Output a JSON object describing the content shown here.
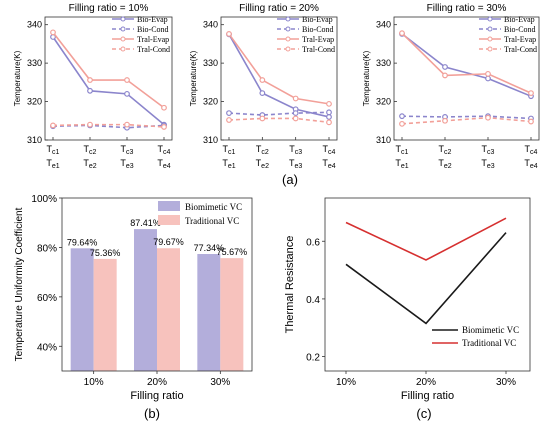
{
  "panel_labels": {
    "a": "(a)",
    "b": "(b)",
    "c": "(c)"
  },
  "colors": {
    "bio_evap": "#8b85cc",
    "tral_evap": "#f2a099",
    "bar_bio": "#b3aedb",
    "bar_tral": "#f7c2bd",
    "line_bio": "#1a1a1a",
    "line_tral": "#d63030"
  },
  "chart_data": [
    {
      "type": "line",
      "title": "Filling ratio = 10%",
      "ylabel": "Temperature(K)",
      "ylim": [
        310,
        342
      ],
      "yticks": [
        310,
        320,
        330,
        340
      ],
      "x_top": [
        "Tc1",
        "Tc2",
        "Tc3",
        "Tc4"
      ],
      "x_bottom": [
        "Te1",
        "Te2",
        "Te3",
        "Te4"
      ],
      "legend": "top-right",
      "series": [
        {
          "name": "Bio-Evap",
          "values": [
            336.8,
            322.8,
            322.0,
            314.0
          ]
        },
        {
          "name": "Bio-Cond",
          "values": [
            313.6,
            313.8,
            313.2,
            313.8
          ]
        },
        {
          "name": "Tral-Evap",
          "values": [
            338.0,
            325.6,
            325.6,
            318.4
          ]
        },
        {
          "name": "Tral-Cond",
          "values": [
            313.8,
            314.0,
            314.0,
            313.4
          ]
        }
      ]
    },
    {
      "type": "line",
      "title": "Filling ratio = 20%",
      "ylabel": "Temperature(K)",
      "ylim": [
        310,
        342
      ],
      "yticks": [
        310,
        320,
        330,
        340
      ],
      "x_top": [
        "Tc1",
        "Tc2",
        "Tc3",
        "Tc4"
      ],
      "x_bottom": [
        "Te1",
        "Te2",
        "Te3",
        "Te4"
      ],
      "legend": "top-right",
      "series": [
        {
          "name": "Bio-Evap",
          "values": [
            337.5,
            322.2,
            318.0,
            316.0
          ]
        },
        {
          "name": "Bio-Cond",
          "values": [
            317.0,
            316.5,
            317.0,
            317.2
          ]
        },
        {
          "name": "Tral-Evap",
          "values": [
            337.6,
            325.6,
            320.8,
            319.4
          ]
        },
        {
          "name": "Tral-Cond",
          "values": [
            315.2,
            315.6,
            315.6,
            314.6
          ]
        }
      ]
    },
    {
      "type": "line",
      "title": "Filling ratio = 30%",
      "ylabel": "Temperature(K)",
      "ylim": [
        310,
        342
      ],
      "yticks": [
        310,
        320,
        330,
        340
      ],
      "x_top": [
        "Tc1",
        "Tc2",
        "Tc3",
        "Tc4"
      ],
      "x_bottom": [
        "Te1",
        "Te2",
        "Te3",
        "Te4"
      ],
      "legend": "top-right",
      "series": [
        {
          "name": "Bio-Evap",
          "values": [
            337.6,
            329.0,
            326.0,
            321.4
          ]
        },
        {
          "name": "Bio-Cond",
          "values": [
            316.2,
            316.0,
            316.2,
            315.6
          ]
        },
        {
          "name": "Tral-Evap",
          "values": [
            337.8,
            326.8,
            327.2,
            322.2
          ]
        },
        {
          "name": "Tral-Cond",
          "values": [
            314.2,
            315.0,
            315.8,
            314.8
          ]
        }
      ]
    },
    {
      "type": "bar",
      "xlabel": "Filling ratio",
      "ylabel": "Temperature Uniformity Coefficient",
      "categories": [
        "10%",
        "20%",
        "30%"
      ],
      "ylim": [
        30,
        100
      ],
      "yticks": [
        "40%",
        "60%",
        "80%",
        "100%"
      ],
      "ytick_values": [
        40,
        60,
        80,
        100
      ],
      "legend": "top-right",
      "series": [
        {
          "name": "Biomimetic VC",
          "values": [
            79.64,
            87.41,
            77.34
          ],
          "labels": [
            "79.64%",
            "87.41%",
            "77.34%"
          ]
        },
        {
          "name": "Traditional VC",
          "values": [
            75.36,
            79.67,
            75.67
          ],
          "labels": [
            "75.36%",
            "79.67%",
            "75.67%"
          ]
        }
      ]
    },
    {
      "type": "line",
      "xlabel": "Filling ratio",
      "ylabel": "Thermal Resistance",
      "categories": [
        "10%",
        "20%",
        "30%"
      ],
      "ylim": [
        0.15,
        0.75
      ],
      "yticks": [
        "0.2",
        "0.4",
        "0.6"
      ],
      "ytick_values": [
        0.2,
        0.4,
        0.6
      ],
      "legend": "bottom-right",
      "series": [
        {
          "name": "Biomimetic VC",
          "values": [
            0.52,
            0.315,
            0.63
          ]
        },
        {
          "name": "Traditional VC",
          "values": [
            0.665,
            0.535,
            0.68
          ]
        }
      ]
    }
  ]
}
